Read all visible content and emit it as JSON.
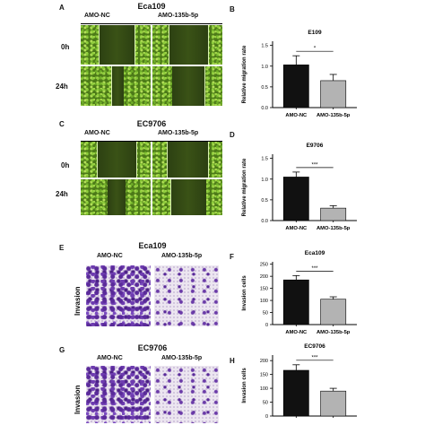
{
  "panels": {
    "A": {
      "letter": "A",
      "title": "Eca109",
      "col1": "AMO-NC",
      "col2": "AMO-135b-5p",
      "row1": "0h",
      "row2": "24h"
    },
    "C": {
      "letter": "C",
      "title": "EC9706",
      "col1": "AMO-NC",
      "col2": "AMO-135b-5p",
      "row1": "0h",
      "row2": "24h"
    },
    "E": {
      "letter": "E",
      "title": "Eca109",
      "col1": "AMO-NC",
      "col2": "AMO-135b-5p",
      "row": "Invasion"
    },
    "G": {
      "letter": "G",
      "title": "EC9706",
      "col1": "AMO-NC",
      "col2": "AMO-135b-5p",
      "row": "Invasion"
    },
    "B": {
      "letter": "B"
    },
    "D": {
      "letter": "D"
    },
    "F": {
      "letter": "F"
    },
    "H": {
      "letter": "H"
    }
  },
  "colors": {
    "bar_nc": "#111111",
    "bar_amo": "#b3b3b3"
  },
  "chart_data": [
    {
      "id": "B",
      "type": "bar",
      "title": "E109",
      "ylabel": "Relative migration rate",
      "categories": [
        "AMO-NC",
        "AMO-135b-5p"
      ],
      "values": [
        1.03,
        0.65
      ],
      "errors": [
        0.22,
        0.15
      ],
      "ylim": [
        0,
        1.6
      ],
      "yticks": [
        "0.0",
        "0.5",
        "1.0",
        "1.5"
      ],
      "significance": "*"
    },
    {
      "id": "D",
      "type": "bar",
      "title": "E9706",
      "ylabel": "Relative migration rate",
      "categories": [
        "AMO-NC",
        "AMO-135b-5p"
      ],
      "values": [
        1.05,
        0.3
      ],
      "errors": [
        0.12,
        0.06
      ],
      "ylim": [
        0,
        1.6
      ],
      "yticks": [
        "0.0",
        "0.5",
        "1.0",
        "1.5"
      ],
      "significance": "***"
    },
    {
      "id": "F",
      "type": "bar",
      "title": "Eca109",
      "ylabel": "Invasion cells",
      "categories": [
        "AMO-NC",
        "AMO-135b-5p"
      ],
      "values": [
        185,
        105
      ],
      "errors": [
        18,
        10
      ],
      "ylim": [
        0,
        260
      ],
      "yticks": [
        "0",
        "50",
        "100",
        "150",
        "200",
        "250"
      ],
      "significance": "***"
    },
    {
      "id": "H",
      "type": "bar",
      "title": "EC9706",
      "ylabel": "Invasion cells",
      "categories": [
        "AMO-NC",
        "AMO-135b-5p"
      ],
      "values": [
        165,
        90
      ],
      "errors": [
        20,
        10
      ],
      "ylim": [
        0,
        220
      ],
      "yticks": [
        "0",
        "50",
        "100",
        "150",
        "200"
      ],
      "significance": "***"
    }
  ]
}
